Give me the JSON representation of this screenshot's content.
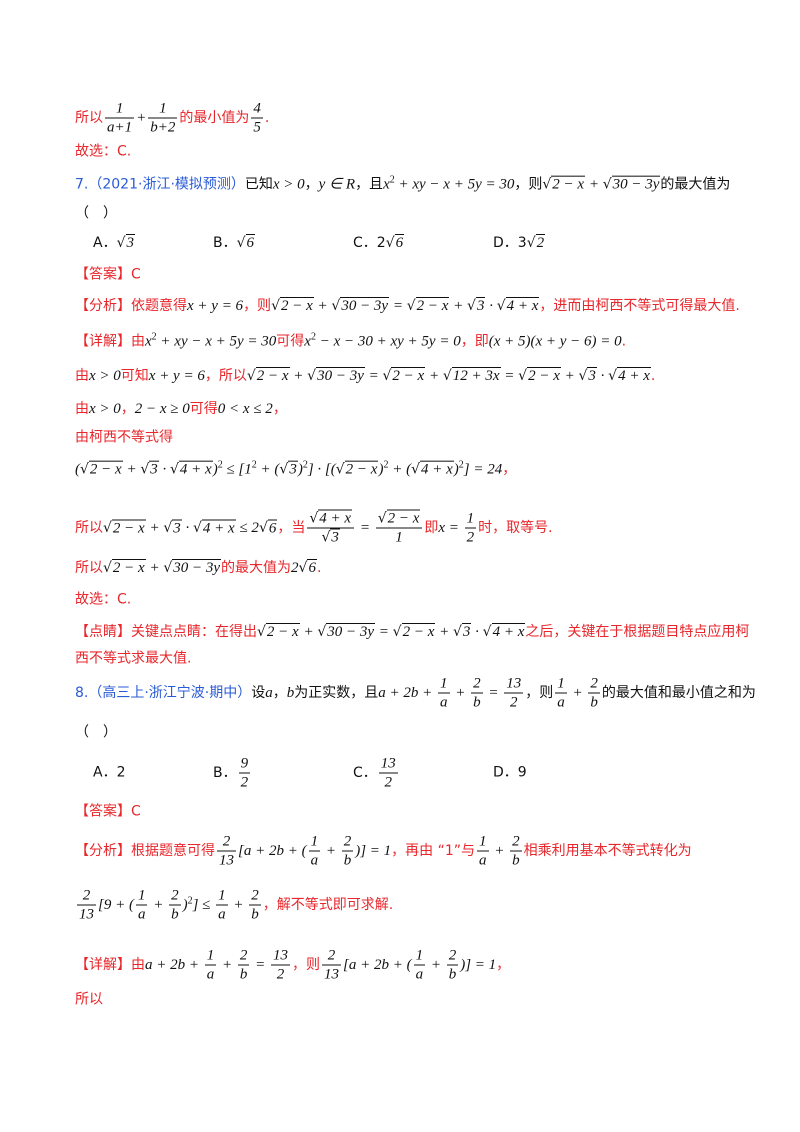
{
  "lines": [
    {
      "color": "#e8262b",
      "segments": [
        "所以",
        {
          "frac": [
            [
              {
                "m": "1"
              }
            ],
            [
              {
                "m": "a+1"
              }
            ]
          ]
        },
        {
          "m": "+"
        },
        {
          "frac": [
            [
              {
                "m": "1"
              }
            ],
            [
              {
                "m": "b+2"
              }
            ]
          ]
        },
        "的最小值为",
        {
          "frac": [
            [
              {
                "m": "4"
              }
            ],
            [
              {
                "m": "5"
              }
            ]
          ]
        },
        "."
      ]
    },
    {
      "color": "#e8262b",
      "segments": [
        "故选：C."
      ]
    },
    {
      "color": "#111111",
      "segments": [
        {
          "t": "7.",
          "color": "#2a5bd7"
        },
        {
          "t": "（2021·浙江·模拟预测）",
          "color": "#2a5bd7"
        },
        "已知",
        {
          "m": "x > 0"
        },
        "，",
        {
          "m": "y ∈ R"
        },
        "，且",
        {
          "m": "x"
        },
        {
          "sup": "2"
        },
        {
          "m": " + xy − x + 5y = 30"
        },
        "，则",
        {
          "sqrt": [
            {
              "m": "2 − x"
            }
          ]
        },
        {
          "m": " + "
        },
        {
          "sqrt": [
            {
              "m": "30 − 3y"
            }
          ]
        },
        "的最大值为"
      ]
    },
    {
      "color": "#111111",
      "segments": [
        "（　）"
      ]
    },
    {
      "color": "#111111",
      "options": [
        [
          "A．",
          {
            "sqrt": [
              {
                "m": "3"
              }
            ]
          }
        ],
        [
          "B．",
          {
            "sqrt": [
              {
                "m": "6"
              }
            ]
          }
        ],
        [
          "C．2",
          {
            "sqrt": [
              {
                "m": "6"
              }
            ]
          }
        ],
        [
          "D．3",
          {
            "sqrt": [
              {
                "m": "2"
              }
            ]
          }
        ]
      ]
    },
    {
      "color": "#e8262b",
      "segments": [
        "【答案】C"
      ]
    },
    {
      "color": "#e8262b",
      "segments": [
        "【分析】依题意得",
        {
          "m": "x + y = 6"
        },
        "，则",
        {
          "sqrt": [
            {
              "m": "2 − x"
            }
          ]
        },
        {
          "m": " + "
        },
        {
          "sqrt": [
            {
              "m": "30 − 3y"
            }
          ]
        },
        {
          "m": " = "
        },
        {
          "sqrt": [
            {
              "m": "2 − x"
            }
          ]
        },
        {
          "m": " + "
        },
        {
          "sqrt": [
            {
              "m": "3"
            }
          ]
        },
        {
          "m": " · "
        },
        {
          "sqrt": [
            {
              "m": "4 + x"
            }
          ]
        },
        "，进而由柯西不等式可得最大值."
      ]
    },
    {
      "color": "#e8262b",
      "segments": [
        "【详解】由",
        {
          "m": "x"
        },
        {
          "sup": "2"
        },
        {
          "m": " + xy − x + 5y = 30"
        },
        "可得",
        {
          "m": "x"
        },
        {
          "sup": "2"
        },
        {
          "m": " − x − 30 + xy + 5y = 0"
        },
        "，即",
        {
          "m": "(x + 5)(x + y − 6) = 0"
        },
        "."
      ]
    },
    {
      "color": "#e8262b",
      "segments": [
        "由",
        {
          "m": "x > 0"
        },
        "可知",
        {
          "m": "x + y = 6"
        },
        "，所以",
        {
          "sqrt": [
            {
              "m": "2 − x"
            }
          ]
        },
        {
          "m": " + "
        },
        {
          "sqrt": [
            {
              "m": "30 − 3y"
            }
          ]
        },
        {
          "m": " = "
        },
        {
          "sqrt": [
            {
              "m": "2 − x"
            }
          ]
        },
        {
          "m": " + "
        },
        {
          "sqrt": [
            {
              "m": "12 + 3x"
            }
          ]
        },
        {
          "m": " = "
        },
        {
          "sqrt": [
            {
              "m": "2 − x"
            }
          ]
        },
        {
          "m": " + "
        },
        {
          "sqrt": [
            {
              "m": "3"
            }
          ]
        },
        {
          "m": " · "
        },
        {
          "sqrt": [
            {
              "m": "4 + x"
            }
          ]
        },
        "."
      ]
    },
    {
      "color": "#e8262b",
      "segments": [
        "由",
        {
          "m": "x > 0"
        },
        "，",
        {
          "m": "2 − x ≥ 0"
        },
        "可得",
        {
          "m": "0 < x ≤ 2"
        },
        "，"
      ]
    },
    {
      "color": "#e8262b",
      "segments": [
        "由柯西不等式得"
      ]
    },
    {
      "color": "#111111",
      "segments": [
        {
          "m": "("
        },
        {
          "sqrt": [
            {
              "m": "2 − x"
            }
          ]
        },
        {
          "m": " + "
        },
        {
          "sqrt": [
            {
              "m": "3"
            }
          ]
        },
        {
          "m": " · "
        },
        {
          "sqrt": [
            {
              "m": "4 + x"
            }
          ]
        },
        {
          "m": ")"
        },
        {
          "sup": "2"
        },
        {
          "m": " ≤ [1"
        },
        {
          "sup": "2"
        },
        {
          "m": " + ("
        },
        {
          "sqrt": [
            {
              "m": "3"
            }
          ]
        },
        {
          "m": ")"
        },
        {
          "sup": "2"
        },
        {
          "m": "] · [("
        },
        {
          "sqrt": [
            {
              "m": "2 − x"
            }
          ]
        },
        {
          "m": ")"
        },
        {
          "sup": "2"
        },
        {
          "m": " + ("
        },
        {
          "sqrt": [
            {
              "m": "4 + x"
            }
          ]
        },
        {
          "m": ")"
        },
        {
          "sup": "2"
        },
        {
          "m": "] = 24"
        },
        {
          "t": "，",
          "color": "#e8262b"
        }
      ]
    },
    {
      "color": "#e8262b",
      "segments": [
        "所以",
        {
          "sqrt": [
            {
              "m": "2 − x"
            }
          ]
        },
        {
          "m": " + "
        },
        {
          "sqrt": [
            {
              "m": "3"
            }
          ]
        },
        {
          "m": " · "
        },
        {
          "sqrt": [
            {
              "m": "4 + x"
            }
          ]
        },
        {
          "m": " ≤ 2"
        },
        {
          "sqrt": [
            {
              "m": "6"
            }
          ]
        },
        "，当",
        {
          "frac": [
            [
              {
                "sqrt": [
                  {
                    "m": "4 + x"
                  }
                ]
              }
            ],
            [
              {
                "sqrt": [
                  {
                    "m": "3"
                  }
                ]
              }
            ]
          ]
        },
        {
          "m": " = "
        },
        {
          "frac": [
            [
              {
                "sqrt": [
                  {
                    "m": "2 − x"
                  }
                ]
              }
            ],
            [
              {
                "m": "1"
              }
            ]
          ]
        },
        "即",
        {
          "m": "x = "
        },
        {
          "frac": [
            [
              {
                "m": "1"
              }
            ],
            [
              {
                "m": "2"
              }
            ]
          ]
        },
        "时，取等号."
      ]
    },
    {
      "color": "#e8262b",
      "segments": [
        "所以",
        {
          "sqrt": [
            {
              "m": "2 − x"
            }
          ]
        },
        {
          "m": " + "
        },
        {
          "sqrt": [
            {
              "m": "30 − 3y"
            }
          ]
        },
        "的最大值为",
        {
          "m": "2"
        },
        {
          "sqrt": [
            {
              "m": "6"
            }
          ]
        },
        "."
      ]
    },
    {
      "color": "#e8262b",
      "segments": [
        "故选：C."
      ]
    },
    {
      "color": "#e8262b",
      "segments": [
        "【点睛】关键点点睛：在得出",
        {
          "sqrt": [
            {
              "m": "2 − x"
            }
          ]
        },
        {
          "m": " + "
        },
        {
          "sqrt": [
            {
              "m": "30 − 3y"
            }
          ]
        },
        {
          "m": " = "
        },
        {
          "sqrt": [
            {
              "m": "2 − x"
            }
          ]
        },
        {
          "m": " + "
        },
        {
          "sqrt": [
            {
              "m": "3"
            }
          ]
        },
        {
          "m": " · "
        },
        {
          "sqrt": [
            {
              "m": "4 + x"
            }
          ]
        },
        "之后，关键在于根据题目特点应用柯"
      ]
    },
    {
      "color": "#e8262b",
      "segments": [
        "西不等式求最大值."
      ]
    },
    {
      "color": "#111111",
      "segments": [
        {
          "t": "8.",
          "color": "#2a5bd7"
        },
        {
          "t": "（高三上·浙江宁波·期中）",
          "color": "#2a5bd7"
        },
        "设",
        {
          "m": "a"
        },
        "，",
        {
          "m": "b"
        },
        "为正实数，且",
        {
          "m": "a + 2b + "
        },
        {
          "frac": [
            [
              {
                "m": "1"
              }
            ],
            [
              {
                "m": "a"
              }
            ]
          ]
        },
        {
          "m": " + "
        },
        {
          "frac": [
            [
              {
                "m": "2"
              }
            ],
            [
              {
                "m": "b"
              }
            ]
          ]
        },
        {
          "m": " = "
        },
        {
          "frac": [
            [
              {
                "m": "13"
              }
            ],
            [
              {
                "m": "2"
              }
            ]
          ]
        },
        "，则",
        {
          "frac": [
            [
              {
                "m": "1"
              }
            ],
            [
              {
                "m": "a"
              }
            ]
          ]
        },
        {
          "m": " + "
        },
        {
          "frac": [
            [
              {
                "m": "2"
              }
            ],
            [
              {
                "m": "b"
              }
            ]
          ]
        },
        "的最大值和最小值之和为"
      ]
    },
    {
      "color": "#111111",
      "segments": [
        "（　）"
      ]
    },
    {
      "color": "#111111",
      "options": [
        [
          "A．2"
        ],
        [
          "B．",
          {
            "frac": [
              [
                {
                  "m": "9"
                }
              ],
              [
                {
                  "m": "2"
                }
              ]
            ]
          }
        ],
        [
          "C．",
          {
            "frac": [
              [
                {
                  "m": "13"
                }
              ],
              [
                {
                  "m": "2"
                }
              ]
            ]
          }
        ],
        [
          "D．9"
        ]
      ]
    },
    {
      "color": "#e8262b",
      "segments": [
        "【答案】C"
      ]
    },
    {
      "color": "#e8262b",
      "segments": [
        "【分析】根据题意可得",
        {
          "frac": [
            [
              {
                "m": "2"
              }
            ],
            [
              {
                "m": "13"
              }
            ]
          ]
        },
        {
          "m": "[a + 2b + ("
        },
        {
          "frac": [
            [
              {
                "m": "1"
              }
            ],
            [
              {
                "m": "a"
              }
            ]
          ]
        },
        {
          "m": " + "
        },
        {
          "frac": [
            [
              {
                "m": "2"
              }
            ],
            [
              {
                "m": "b"
              }
            ]
          ]
        },
        {
          "m": ")] = 1"
        },
        "，再由 “1”与",
        {
          "frac": [
            [
              {
                "m": "1"
              }
            ],
            [
              {
                "m": "a"
              }
            ]
          ]
        },
        {
          "m": " + "
        },
        {
          "frac": [
            [
              {
                "m": "2"
              }
            ],
            [
              {
                "m": "b"
              }
            ]
          ]
        },
        "相乘利用基本不等式转化为"
      ]
    },
    {
      "color": "#e8262b",
      "segments": [
        {
          "frac": [
            [
              {
                "m": "2"
              }
            ],
            [
              {
                "m": "13"
              }
            ]
          ]
        },
        {
          "m": "[9 + ("
        },
        {
          "frac": [
            [
              {
                "m": "1"
              }
            ],
            [
              {
                "m": "a"
              }
            ]
          ]
        },
        {
          "m": " + "
        },
        {
          "frac": [
            [
              {
                "m": "2"
              }
            ],
            [
              {
                "m": "b"
              }
            ]
          ]
        },
        {
          "m": ")"
        },
        {
          "sup": "2"
        },
        {
          "m": "] ≤ "
        },
        {
          "frac": [
            [
              {
                "m": "1"
              }
            ],
            [
              {
                "m": "a"
              }
            ]
          ]
        },
        {
          "m": " + "
        },
        {
          "frac": [
            [
              {
                "m": "2"
              }
            ],
            [
              {
                "m": "b"
              }
            ]
          ]
        },
        "，解不等式即可求解."
      ]
    },
    {
      "color": "#e8262b",
      "segments": [
        "【详解】由",
        {
          "m": "a + 2b + "
        },
        {
          "frac": [
            [
              {
                "m": "1"
              }
            ],
            [
              {
                "m": "a"
              }
            ]
          ]
        },
        {
          "m": " + "
        },
        {
          "frac": [
            [
              {
                "m": "2"
              }
            ],
            [
              {
                "m": "b"
              }
            ]
          ]
        },
        {
          "m": " = "
        },
        {
          "frac": [
            [
              {
                "m": "13"
              }
            ],
            [
              {
                "m": "2"
              }
            ]
          ]
        },
        "，则",
        {
          "frac": [
            [
              {
                "m": "2"
              }
            ],
            [
              {
                "m": "13"
              }
            ]
          ]
        },
        {
          "m": "[a + 2b + ("
        },
        {
          "frac": [
            [
              {
                "m": "1"
              }
            ],
            [
              {
                "m": "a"
              }
            ]
          ]
        },
        {
          "m": " + "
        },
        {
          "frac": [
            [
              {
                "m": "2"
              }
            ],
            [
              {
                "m": "b"
              }
            ]
          ]
        },
        {
          "m": ")] = 1"
        },
        "，"
      ]
    },
    {
      "color": "#e8262b",
      "segments": [
        "所以"
      ]
    }
  ]
}
